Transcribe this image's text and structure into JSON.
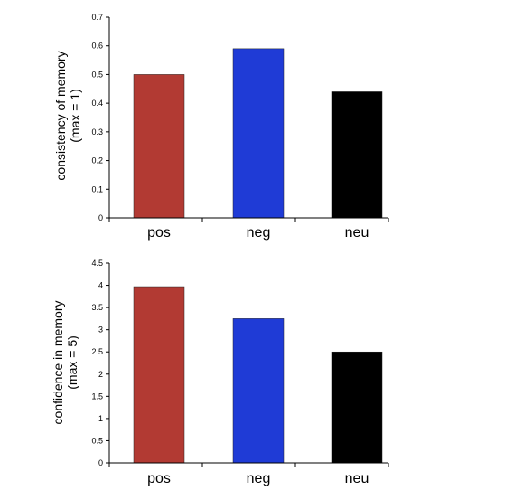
{
  "chart_data": [
    {
      "type": "bar",
      "categories": [
        "pos",
        "neg",
        "neu"
      ],
      "values": [
        0.5,
        0.59,
        0.44
      ],
      "colors": [
        "#b23a33",
        "#1f3bd6",
        "#000000"
      ],
      "ylabel_lines": [
        "consistency of memory",
        "(max = 1)"
      ],
      "ylim": [
        0,
        0.7
      ],
      "yticks": [
        "0",
        "0.1",
        "0.2",
        "0.3",
        "0.4",
        "0.5",
        "0.6",
        "0.7"
      ],
      "grid": false
    },
    {
      "type": "bar",
      "categories": [
        "pos",
        "neg",
        "neu"
      ],
      "values": [
        3.97,
        3.25,
        2.5
      ],
      "colors": [
        "#b23a33",
        "#1f3bd6",
        "#000000"
      ],
      "ylabel_lines": [
        "confidence in memory",
        "(max = 5)"
      ],
      "ylim": [
        0,
        4.5
      ],
      "yticks": [
        "0",
        "0.5",
        "1",
        "1.5",
        "2",
        "2.5",
        "3",
        "3.5",
        "4",
        "4.5"
      ],
      "grid": false
    }
  ]
}
